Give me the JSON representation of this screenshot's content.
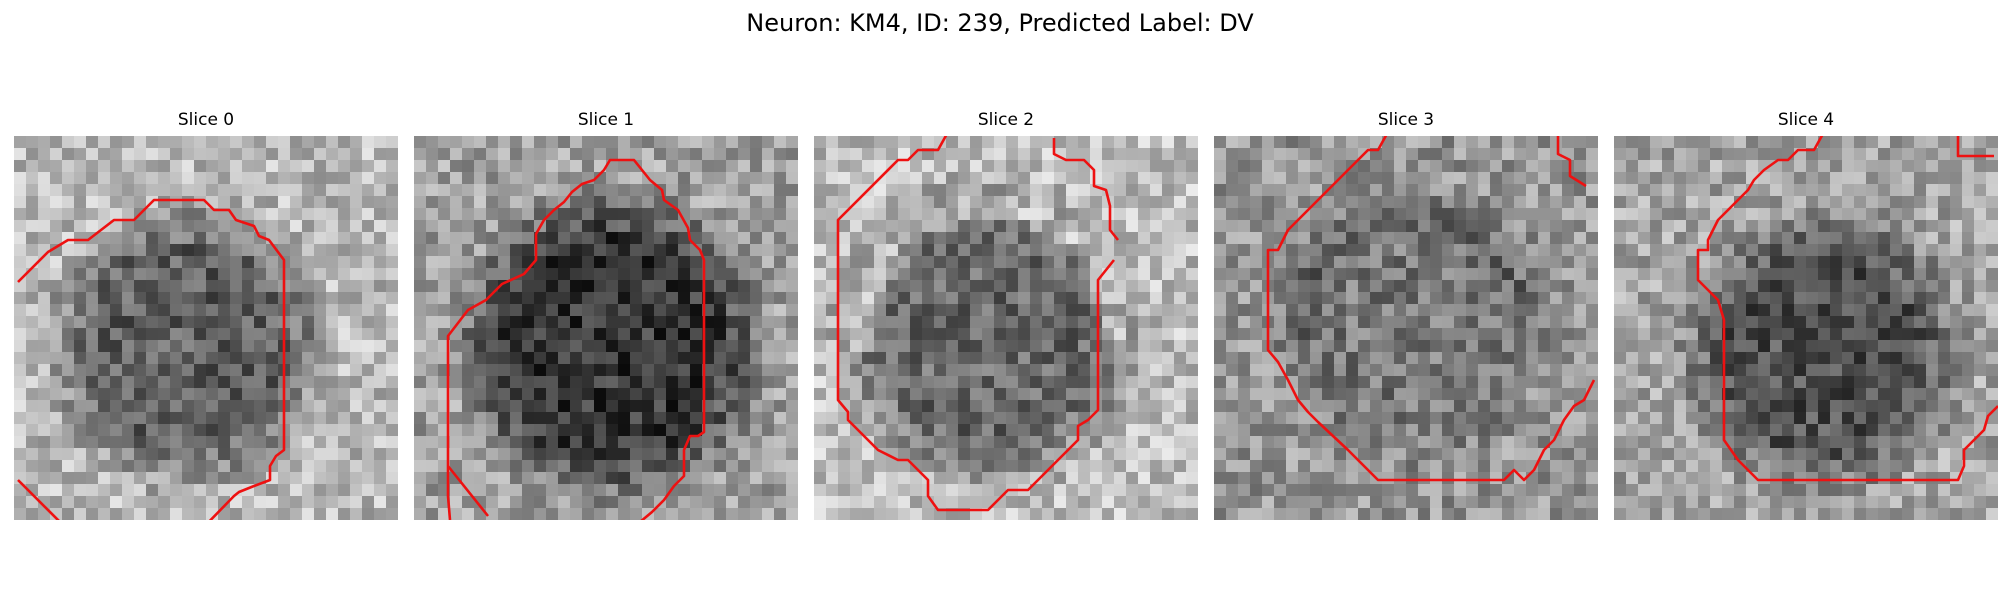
{
  "figure": {
    "title": "Neuron: KM4, ID: 239, Predicted Label: DV"
  },
  "panels": [
    {
      "title": "Slice 0"
    },
    {
      "title": "Slice 1"
    },
    {
      "title": "Slice 2"
    },
    {
      "title": "Slice 3"
    },
    {
      "title": "Slice 4"
    }
  ],
  "colors": {
    "contour": "#ee1111",
    "background": "#ffffff"
  }
}
